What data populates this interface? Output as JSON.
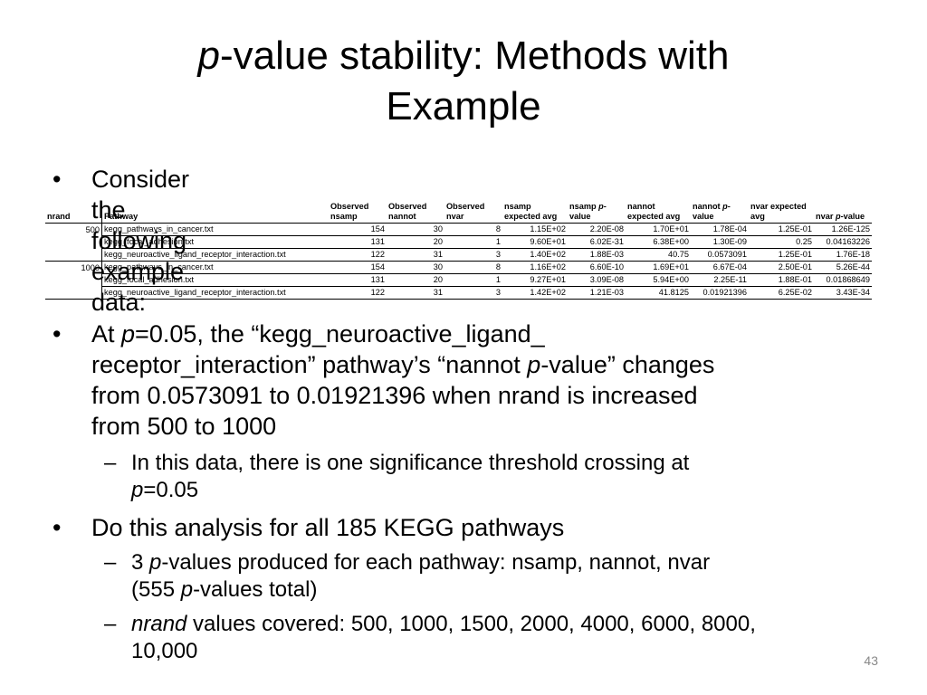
{
  "slide": {
    "title_italic": "p",
    "title_rest_line1": "-value stability: Methods with",
    "title_line2": "Example",
    "page_number": "43"
  },
  "bullets": {
    "b1": "Consider the following example data:",
    "b2_line1_pre": "At ",
    "b2_line1_p": "p",
    "b2_line1_post": "=0.05, the “kegg_neuroactive_ligand_",
    "b2_line2_pre": "receptor_interaction” pathway’s “nannot ",
    "b2_line2_p": "p",
    "b2_line2_post": "-value” changes",
    "b2_line3": "from 0.0573091 to 0.01921396 when nrand is increased",
    "b2_line4": "from 500 to 1000",
    "s1_line1": "In this data, there is one significance threshold crossing at",
    "s1_line2_p": "p",
    "s1_line2_post": "=0.05",
    "b3": "Do this analysis for all 185 KEGG pathways",
    "s2_line1_pre": "3 ",
    "s2_line1_p": "p",
    "s2_line1_post": "-values produced for each pathway: nsamp, nannot, nvar",
    "s2_line2_pre": "(555 ",
    "s2_line2_p": "p",
    "s2_line2_post": "-values total)",
    "s3_line1_it": "nrand",
    "s3_line1_post": " values covered: 500, 1000, 1500, 2000, 4000, 6000, 8000,",
    "s3_line2": "10,000",
    "bullet_glyph": "•",
    "dash_glyph": "–"
  },
  "table": {
    "headers": {
      "nrand": "nrand",
      "pathway": "Pathway",
      "obs_nsamp_1": "Observed",
      "obs_nsamp_2": "nsamp",
      "obs_nannot_1": "Observed",
      "obs_nannot_2": "nannot",
      "obs_nvar_1": "Observed",
      "obs_nvar_2": "nvar",
      "nsamp_exp_1": "nsamp",
      "nsamp_exp_2": "expected avg",
      "nsamp_p_1": "nsamp ",
      "nsamp_p_1i": "p",
      "nsamp_p_1b": "-",
      "nsamp_p_2": "value",
      "nannot_exp_1": "nannot",
      "nannot_exp_2": "expected avg",
      "nannot_p_1": "nannot ",
      "nannot_p_1i": "p",
      "nannot_p_1b": "-",
      "nannot_p_2": "value",
      "nvar_exp_1": "nvar expected",
      "nvar_exp_2": "avg",
      "nvar_p_pre": "nvar ",
      "nvar_p_i": "p",
      "nvar_p_post": "-value"
    },
    "rows": [
      {
        "nrand": "500",
        "pathway": "kegg_pathways_in_cancer.txt",
        "obs_nsamp": "154",
        "obs_nannot": "30",
        "obs_nvar": "8",
        "nsamp_exp": "1.15E+02",
        "nsamp_p": "2.20E-08",
        "nannot_exp": "1.70E+01",
        "nannot_p": "1.78E-04",
        "nvar_exp": "1.25E-01",
        "nvar_p": "1.26E-125"
      },
      {
        "nrand": "",
        "pathway": "kegg_focal_adhesion.txt",
        "obs_nsamp": "131",
        "obs_nannot": "20",
        "obs_nvar": "1",
        "nsamp_exp": "9.60E+01",
        "nsamp_p": "6.02E-31",
        "nannot_exp": "6.38E+00",
        "nannot_p": "1.30E-09",
        "nvar_exp": "0.25",
        "nvar_p": "0.04163226"
      },
      {
        "nrand": "",
        "pathway": "kegg_neuroactive_ligand_receptor_interaction.txt",
        "obs_nsamp": "122",
        "obs_nannot": "31",
        "obs_nvar": "3",
        "nsamp_exp": "1.40E+02",
        "nsamp_p": "1.88E-03",
        "nannot_exp": "40.75",
        "nannot_p": "0.0573091",
        "nvar_exp": "1.25E-01",
        "nvar_p": "1.76E-18"
      },
      {
        "nrand": "1000",
        "pathway": "kegg_pathways_in_cancer.txt",
        "obs_nsamp": "154",
        "obs_nannot": "30",
        "obs_nvar": "8",
        "nsamp_exp": "1.16E+02",
        "nsamp_p": "6.60E-10",
        "nannot_exp": "1.69E+01",
        "nannot_p": "6.67E-04",
        "nvar_exp": "2.50E-01",
        "nvar_p": "5.26E-44"
      },
      {
        "nrand": "",
        "pathway": "kegg_focal_adhesion.txt",
        "obs_nsamp": "131",
        "obs_nannot": "20",
        "obs_nvar": "1",
        "nsamp_exp": "9.27E+01",
        "nsamp_p": "3.09E-08",
        "nannot_exp": "5.94E+00",
        "nannot_p": "2.25E-11",
        "nvar_exp": "1.88E-01",
        "nvar_p": "0.01868649"
      },
      {
        "nrand": "",
        "pathway": "kegg_neuroactive_ligand_receptor_interaction.txt",
        "obs_nsamp": "122",
        "obs_nannot": "31",
        "obs_nvar": "3",
        "nsamp_exp": "1.42E+02",
        "nsamp_p": "1.21E-03",
        "nannot_exp": "41.8125",
        "nannot_p": "0.01921396",
        "nvar_exp": "6.25E-02",
        "nvar_p": "3.43E-34"
      }
    ]
  }
}
